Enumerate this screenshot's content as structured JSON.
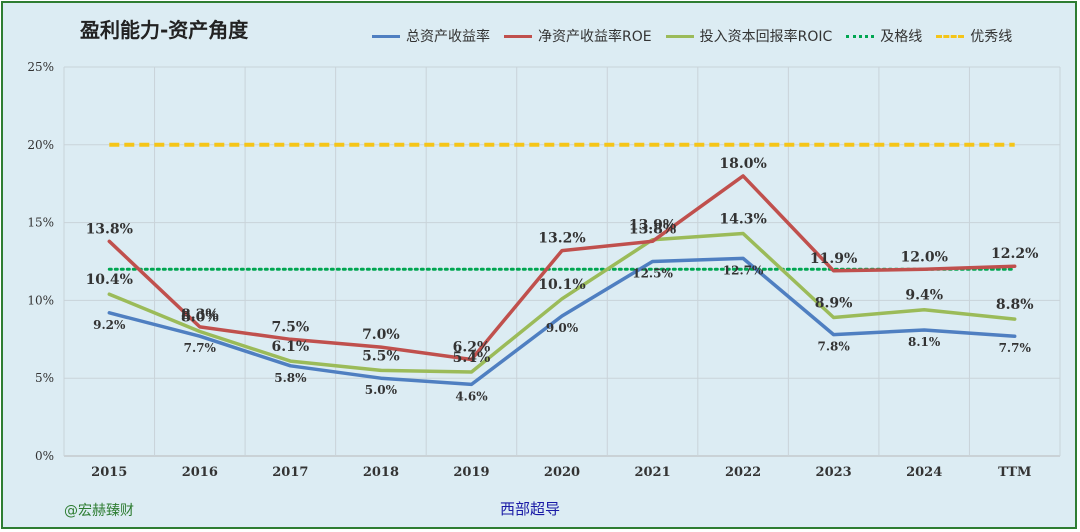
{
  "chart_data": {
    "type": "line",
    "title": "盈利能力-资产角度",
    "categories": [
      "2015",
      "2016",
      "2017",
      "2018",
      "2019",
      "2020",
      "2021",
      "2022",
      "2023",
      "2024",
      "TTM"
    ],
    "ylim": [
      0,
      25
    ],
    "yticks": [
      "0%",
      "5%",
      "10%",
      "15%",
      "20%",
      "25%"
    ],
    "grid": true,
    "legend_position": "top-right",
    "series": [
      {
        "name": "总资产收益率",
        "color": "#4f7fc1",
        "style": "solid",
        "values": [
          9.2,
          7.7,
          5.8,
          5.0,
          4.6,
          9.0,
          12.5,
          12.7,
          7.8,
          8.1,
          7.7
        ],
        "labels": [
          "9.2%",
          "7.7%",
          "5.8%",
          "5.0%",
          "4.6%",
          "9.0%",
          "12.5%",
          "12.7%",
          "7.8%",
          "8.1%",
          "7.7%"
        ]
      },
      {
        "name": "净资产收益率ROE",
        "color": "#c0504d",
        "style": "solid",
        "values": [
          13.8,
          8.3,
          7.5,
          7.0,
          6.2,
          13.2,
          13.8,
          18.0,
          11.9,
          12.0,
          12.2
        ],
        "labels": [
          "13.8%",
          "8.3%",
          "7.5%",
          "7.0%",
          "6.2%",
          "13.2%",
          "13.8%",
          "18.0%",
          "11.9%",
          "12.0%",
          "12.2%"
        ]
      },
      {
        "name": "投入资本回报率ROIC",
        "color": "#9bbb59",
        "style": "solid",
        "values": [
          10.4,
          8.0,
          6.1,
          5.5,
          5.4,
          10.1,
          13.9,
          14.3,
          8.9,
          9.4,
          8.8
        ],
        "labels": [
          "10.4%",
          "8.0%",
          "6.1%",
          "5.5%",
          "5.4%",
          "10.1%",
          "13.9%",
          "14.3%",
          "8.9%",
          "9.4%",
          "8.8%"
        ]
      },
      {
        "name": "及格线",
        "color": "#00a651",
        "style": "dotted",
        "values": [
          12,
          12,
          12,
          12,
          12,
          12,
          12,
          12,
          12,
          12,
          12
        ]
      },
      {
        "name": "优秀线",
        "color": "#f5c518",
        "style": "dashed",
        "values": [
          20,
          20,
          20,
          20,
          20,
          20,
          20,
          20,
          20,
          20,
          20
        ]
      }
    ]
  },
  "footer": {
    "left": "@宏赫臻财",
    "center": "西部超导"
  }
}
